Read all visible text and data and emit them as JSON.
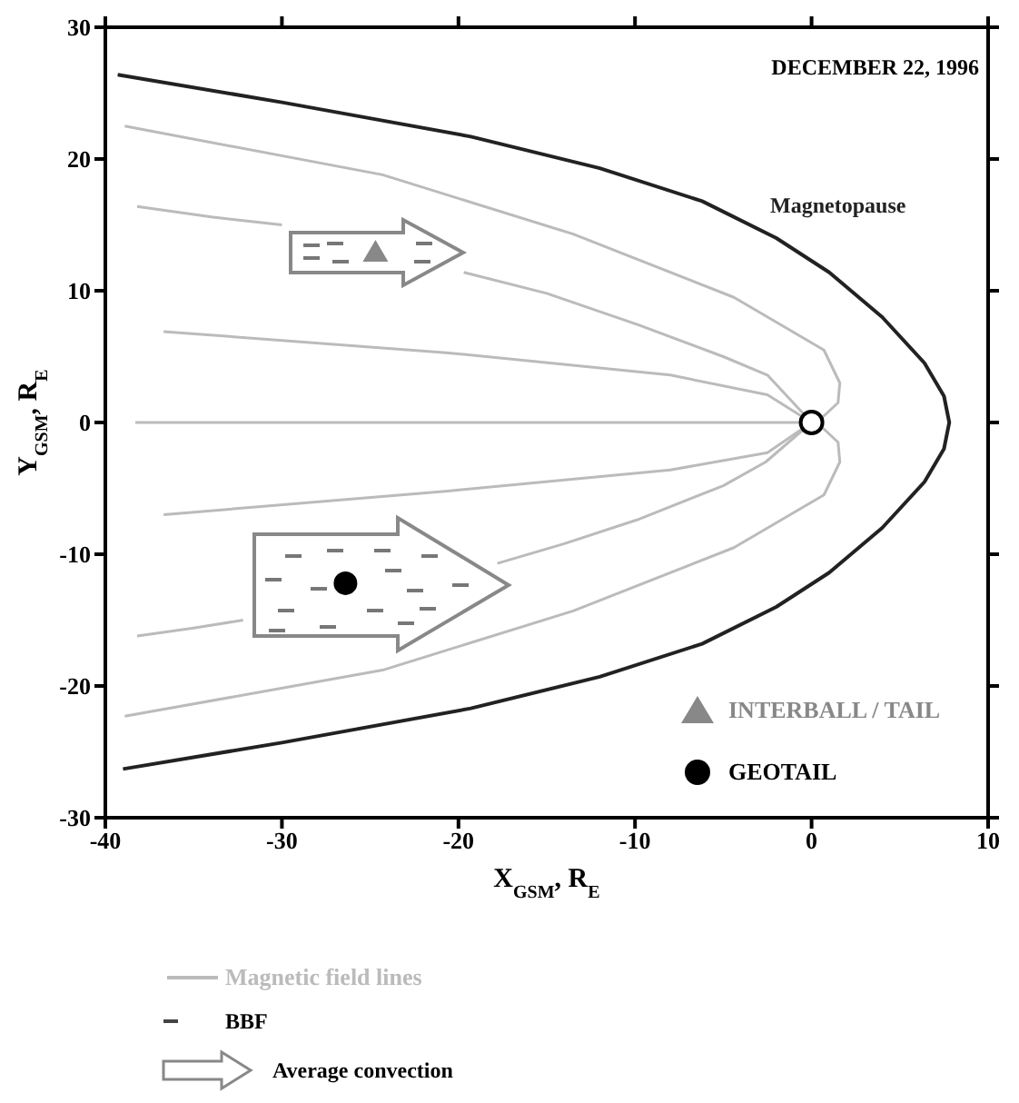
{
  "chart_data": {
    "type": "line",
    "xlabel": "X$_{GSM}$, R$_{E}$",
    "ylabel": "Y$_{GSM}$, R$_{E}$",
    "xlim": [
      -40,
      10
    ],
    "ylim": [
      -30,
      30
    ],
    "xticks": [
      -40,
      -30,
      -20,
      -10,
      0,
      10
    ],
    "yticks": [
      -30,
      -20,
      -10,
      0,
      10,
      20,
      30
    ],
    "grid": false,
    "legend": "bottom right",
    "annotations": [
      "DECEMBER 22, 1996",
      "BBF",
      "Average convection"
    ],
    "series": [
      {
        "name": "Magnetopause",
        "type": "line",
        "color": "#222222",
        "x": [
          -39.3,
          -30,
          -19.3,
          -12,
          -6.2,
          -2,
          1,
          4,
          6.4,
          7.5,
          7.8,
          7.5,
          6.4,
          4,
          1,
          -2,
          -6.2,
          -12,
          -19.3,
          -30,
          -39
        ],
        "values": [
          26.4,
          24.3,
          21.7,
          19.3,
          16.8,
          14,
          11.4,
          8,
          4.5,
          2,
          0,
          -2,
          -4.5,
          -8,
          -11.4,
          -14,
          -16.8,
          -19.3,
          -21.7,
          -24.3,
          -26.3
        ]
      },
      {
        "name": "Magnetic field lines",
        "type": "line",
        "color": "#bbbbbb",
        "x": [
          -38.9,
          -24.3,
          -13.5,
          -4.4,
          0.7,
          1.6,
          1.5,
          0.3
        ],
        "values": [
          22.5,
          18.8,
          14.3,
          9.5,
          5.5,
          3,
          1.5,
          0
        ]
      },
      {
        "type": "line",
        "color": "#bbbbbb",
        "x": [
          -38.9,
          -24.3,
          -13.5,
          -4.4,
          0.7,
          1.6,
          1.5,
          0.3
        ],
        "values": [
          -22.3,
          -18.8,
          -14.3,
          -9.5,
          -5.5,
          -3,
          -1.5,
          0
        ]
      },
      {
        "type": "line",
        "color": "#bbbbbb",
        "x": [
          -38.2,
          -34,
          -30,
          -25,
          -19.7,
          -15,
          -9.8,
          -5,
          -2.5,
          0
        ],
        "values": [
          16.4,
          15.6,
          15,
          null,
          11.4,
          9.8,
          7.4,
          5,
          3.6,
          0
        ]
      },
      {
        "type": "line",
        "color": "#bbbbbb",
        "x": [
          -38.2,
          -35,
          -32.2,
          -25,
          -17.8,
          -14,
          -9.9,
          -5,
          -2.6,
          0
        ],
        "values": [
          -16.2,
          -15.6,
          -15,
          null,
          -10.7,
          -9.2,
          -7.4,
          -4.8,
          -3,
          0
        ]
      },
      {
        "type": "line",
        "color": "#bbbbbb",
        "x": [
          -36.7,
          -20.7,
          -8,
          -2.5,
          0
        ],
        "values": [
          6.9,
          5.3,
          3.6,
          2.1,
          0
        ]
      },
      {
        "type": "line",
        "color": "#bbbbbb",
        "x": [
          -36.7,
          -20.6,
          -8,
          -2.5,
          0
        ],
        "values": [
          -7,
          -5.2,
          -3.6,
          -2.3,
          0
        ]
      },
      {
        "type": "line",
        "color": "#bbbbbb",
        "x": [
          -38.3,
          0
        ],
        "values": [
          0,
          0
        ]
      },
      {
        "type": "scatter",
        "color": "#000000",
        "marker": "circle",
        "x": [
          0
        ],
        "values": [
          0
        ]
      },
      {
        "name": "INTERBALL / TAIL",
        "type": "scatter",
        "color": "#888888",
        "marker": "triangle",
        "x": [
          -24.7
        ],
        "values": [
          12.9
        ]
      },
      {
        "name": "GEOTAIL",
        "type": "scatter",
        "color": "#000000",
        "marker": "circle",
        "x": [
          -26.4
        ],
        "values": [
          -12.2
        ]
      }
    ]
  }
}
